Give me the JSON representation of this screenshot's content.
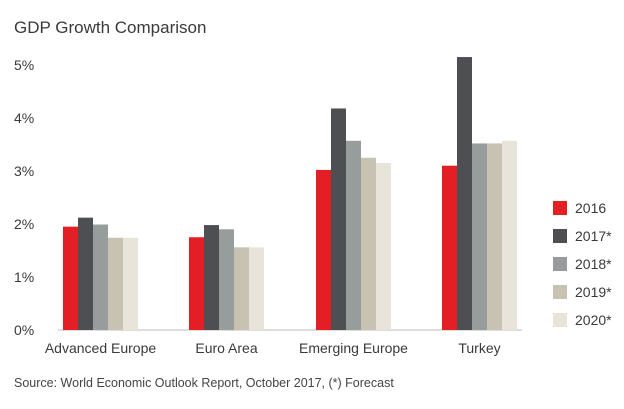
{
  "chart_data": {
    "type": "bar",
    "title": "GDP Growth Comparison",
    "categories": [
      "Advanced Europe",
      "Euro Area",
      "Emerging Europe",
      "Turkey"
    ],
    "series": [
      {
        "name": "2016",
        "color": "#e31e24",
        "values": [
          1.95,
          1.75,
          3.02,
          3.1
        ]
      },
      {
        "name": "2017*",
        "color": "#4d4f53",
        "values": [
          2.12,
          1.98,
          4.18,
          5.15
        ]
      },
      {
        "name": "2018*",
        "color": "#979c9c",
        "values": [
          1.99,
          1.9,
          3.57,
          3.52
        ]
      },
      {
        "name": "2019*",
        "color": "#c7c2b2",
        "values": [
          1.74,
          1.56,
          3.25,
          3.52
        ]
      },
      {
        "name": "2020*",
        "color": "#e8e4da",
        "values": [
          1.74,
          1.56,
          3.15,
          3.57
        ]
      }
    ],
    "yticks": [
      "0%",
      "1%",
      "2%",
      "3%",
      "4%",
      "5%"
    ],
    "ylim": [
      0,
      5
    ],
    "grid": false,
    "legend_position": "right",
    "source": "Source: World Economic Outlook Report, October 2017, (*) Forecast"
  }
}
